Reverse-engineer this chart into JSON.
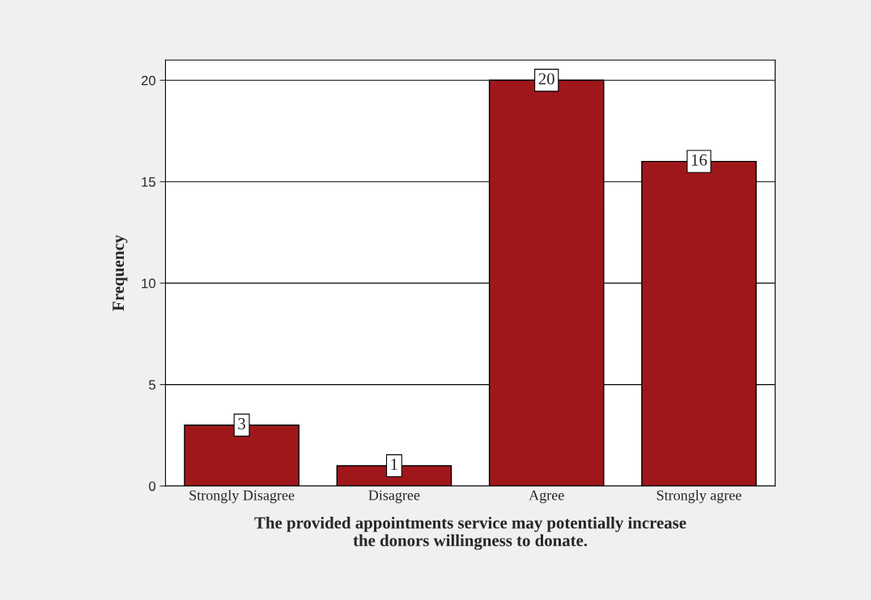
{
  "chart_data": {
    "type": "bar",
    "categories": [
      "Strongly Disagree",
      "Disagree",
      "Agree",
      "Strongly agree"
    ],
    "values": [
      3,
      1,
      20,
      16
    ],
    "color": "#a0171b",
    "xlabel": "The provided appointments service may potentially increase\nthe donors willingness to donate.",
    "ylabel": "Frequency",
    "ylim": [
      0,
      21
    ],
    "yticks": [
      0,
      5,
      10,
      15,
      20
    ],
    "grid": "y",
    "data_labels": true
  }
}
